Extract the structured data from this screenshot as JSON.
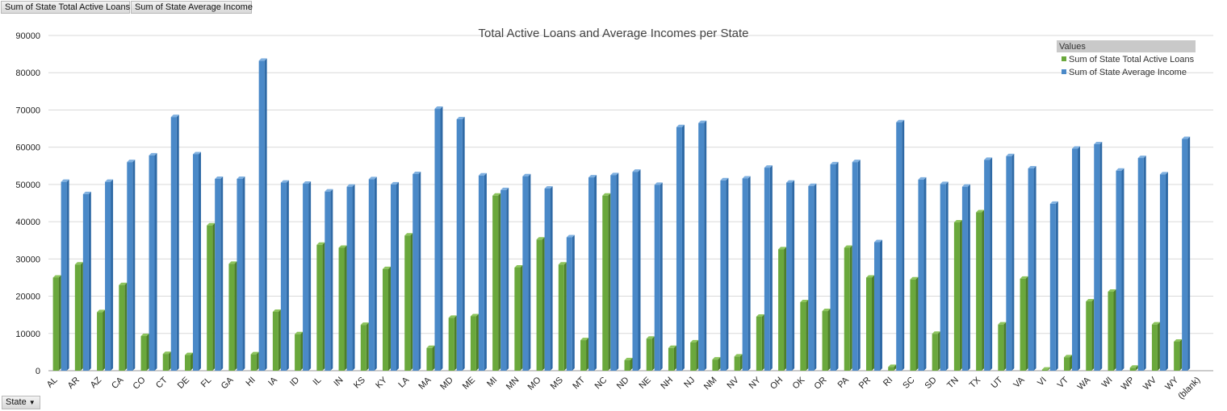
{
  "field_buttons": {
    "loans": "Sum of State Total Active Loans",
    "income": "Sum of State Average Income",
    "state_filter": "State"
  },
  "legend": {
    "header": "Values",
    "placement": "top-right"
  },
  "chart_data": {
    "type": "bar",
    "title": "Total Active Loans and Average Incomes per State",
    "xlabel": "",
    "ylabel": "",
    "ylim": [
      0,
      90000
    ],
    "yticks": [
      0,
      10000,
      20000,
      30000,
      40000,
      50000,
      60000,
      70000,
      80000,
      90000
    ],
    "grid": true,
    "categories": [
      "AL",
      "AR",
      "AZ",
      "CA",
      "CO",
      "CT",
      "DE",
      "FL",
      "GA",
      "HI",
      "IA",
      "ID",
      "IL",
      "IN",
      "KS",
      "KY",
      "LA",
      "MA",
      "MD",
      "ME",
      "MI",
      "MN",
      "MO",
      "MS",
      "MT",
      "NC",
      "ND",
      "NE",
      "NH",
      "NJ",
      "NM",
      "NV",
      "NY",
      "OH",
      "OK",
      "OR",
      "PA",
      "PR",
      "RI",
      "SC",
      "SD",
      "TN",
      "TX",
      "UT",
      "VA",
      "VI",
      "VT",
      "WA",
      "WI",
      "WP",
      "WV",
      "WY",
      "(blank)"
    ],
    "series": [
      {
        "name": "Sum of State Total Active Loans",
        "color": "#6aa83c",
        "values": [
          25000,
          28500,
          15700,
          23000,
          9300,
          4500,
          4200,
          39000,
          28700,
          4400,
          15800,
          9800,
          33800,
          33000,
          12300,
          27300,
          36300,
          6100,
          14200,
          14600,
          47000,
          27700,
          35200,
          28500,
          8200,
          47000,
          2800,
          8600,
          6100,
          7600,
          3000,
          3800,
          14500,
          32600,
          18400,
          16000,
          33000,
          25000,
          1000,
          24500,
          9900,
          39800,
          42500,
          12400,
          24700,
          300,
          3600,
          18600,
          21200,
          800,
          12400,
          7800,
          null
        ]
      },
      {
        "name": "Sum of State Average Income",
        "color": "#4a89c8",
        "values": [
          50700,
          47400,
          50700,
          56000,
          57800,
          68100,
          58100,
          51500,
          51500,
          83200,
          50500,
          50200,
          48100,
          49400,
          51400,
          50000,
          52800,
          70300,
          67500,
          52400,
          48500,
          52200,
          48900,
          35800,
          51900,
          52500,
          53400,
          49900,
          65400,
          66500,
          51100,
          51600,
          54500,
          50500,
          49600,
          55400,
          56000,
          34500,
          66700,
          51300,
          50100,
          49400,
          56600,
          57600,
          54300,
          44800,
          59600,
          60800,
          53700,
          57100,
          52700,
          62200,
          null
        ]
      }
    ]
  }
}
